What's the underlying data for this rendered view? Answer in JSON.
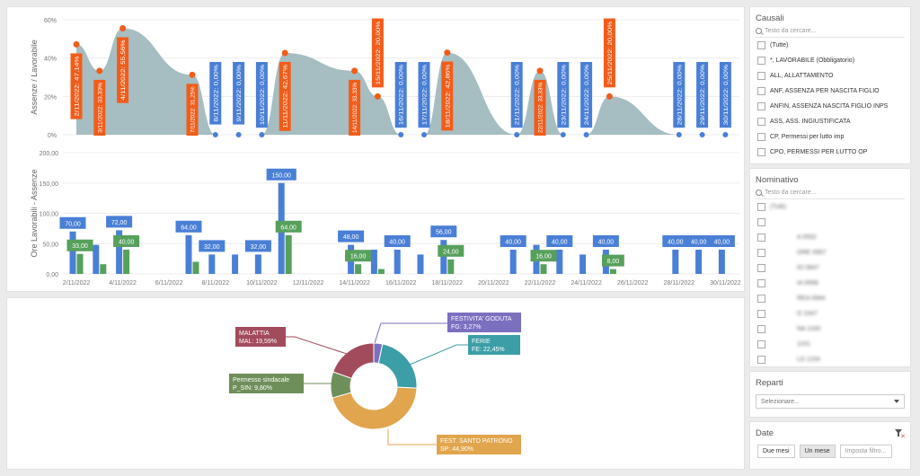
{
  "area_chart": {
    "ylabel": "Assenze / Lavorabile",
    "y_ticks": [
      "60%",
      "40%",
      "20%",
      "0%"
    ],
    "labels": [
      {
        "x": "2/11/2022",
        "text": "2/11/2022: 47,14%",
        "value": 47.14,
        "type": "orange"
      },
      {
        "x": "3/11/2022",
        "text": "3/11/2022: 33,33%",
        "value": 33.33,
        "type": "orange"
      },
      {
        "x": "4/11/2022",
        "text": "4/11/2022: 55,56%",
        "value": 55.56,
        "type": "orange"
      },
      {
        "x": "7/11/2022",
        "text": "7/11/2022: 31,25%",
        "value": 31.25,
        "type": "orange"
      },
      {
        "x": "8/11/2022",
        "text": "8/11/2022: 0,00%",
        "value": 0,
        "type": "blue"
      },
      {
        "x": "9/11/2022",
        "text": "9/11/2022: 0,00%",
        "value": 0,
        "type": "blue"
      },
      {
        "x": "10/11/2022",
        "text": "10/11/2022: 0,00%",
        "value": 0,
        "type": "blue"
      },
      {
        "x": "11/11/2022",
        "text": "11/11/2022: 42,67%",
        "value": 42.67,
        "type": "orange"
      },
      {
        "x": "14/11/2022",
        "text": "14/11/2022: 33,33%",
        "value": 33.33,
        "type": "orange"
      },
      {
        "x": "15/11/2022",
        "text": "15/11/2022: 20,00%",
        "value": 20.0,
        "type": "orange"
      },
      {
        "x": "16/11/2022",
        "text": "16/11/2022: 0,00%",
        "value": 0,
        "type": "blue"
      },
      {
        "x": "17/11/2022",
        "text": "17/11/2022: 0,00%",
        "value": 0,
        "type": "blue"
      },
      {
        "x": "18/11/2022",
        "text": "18/11/2022: 42,86%",
        "value": 42.86,
        "type": "orange"
      },
      {
        "x": "21/11/2022",
        "text": "21/11/2022: 0,00%",
        "value": 0,
        "type": "blue"
      },
      {
        "x": "22/11/2022",
        "text": "22/11/2022: 33,33%",
        "value": 33.33,
        "type": "orange"
      },
      {
        "x": "23/11/2022",
        "text": "23/11/2022: 0,00%",
        "value": 0,
        "type": "blue"
      },
      {
        "x": "24/11/2022",
        "text": "24/11/2022: 0,00%",
        "value": 0,
        "type": "blue"
      },
      {
        "x": "25/11/2022",
        "text": "25/11/2022: 20,00%",
        "value": 20.0,
        "type": "orange"
      },
      {
        "x": "28/11/2022",
        "text": "28/11/2022: 0,00%",
        "value": 0,
        "type": "blue"
      },
      {
        "x": "29/11/2022",
        "text": "29/11/2022: 0,00%",
        "value": 0,
        "type": "blue"
      },
      {
        "x": "30/11/2022",
        "text": "30/11/2022: 0,00%",
        "value": 0,
        "type": "blue"
      }
    ],
    "colors": {
      "area": "#a6bec2",
      "orange": "#f25c19",
      "blue": "#4a7fd6"
    }
  },
  "chart_data": {
    "type": "bar",
    "title": "",
    "ylabel": "Ore Lavorabili - Assenze",
    "ylim": [
      0,
      200
    ],
    "y_ticks": [
      "200,00",
      "150,00",
      "100,00",
      "50,00",
      "0,00"
    ],
    "x_ticks": [
      "2/11/2022",
      "4/11/2022",
      "6/11/2022",
      "8/11/2022",
      "10/11/2022",
      "12/11/2022",
      "14/11/2022",
      "16/11/2022",
      "18/11/2022",
      "20/11/2022",
      "22/11/2022",
      "24/11/2022",
      "26/11/2022",
      "28/11/2022",
      "30/11/2022"
    ],
    "categories": [
      "2/11/2022",
      "3/11/2022",
      "4/11/2022",
      "7/11/2022",
      "8/11/2022",
      "9/11/2022",
      "10/11/2022",
      "11/11/2022",
      "14/11/2022",
      "15/11/2022",
      "16/11/2022",
      "17/11/2022",
      "18/11/2022",
      "21/11/2022",
      "22/11/2022",
      "23/11/2022",
      "24/11/2022",
      "25/11/2022",
      "28/11/2022",
      "29/11/2022",
      "30/11/2022"
    ],
    "series": [
      {
        "values": [
          70,
          48,
          72,
          64,
          32,
          32,
          32,
          150,
          48,
          40,
          40,
          32,
          56,
          40,
          48,
          40,
          32,
          40,
          40,
          40,
          40
        ],
        "color": "#4a7fd6"
      },
      {
        "values": [
          33,
          16,
          40,
          20,
          0,
          0,
          0,
          64,
          16,
          8,
          0,
          0,
          24,
          0,
          16,
          0,
          0,
          8,
          0,
          0,
          0
        ],
        "color": "#56a05c"
      }
    ],
    "data_labels": [
      {
        "category": "2/11/2022",
        "series": 0,
        "text": "70,00"
      },
      {
        "category": "2/11/2022",
        "series": 1,
        "text": "33,00"
      },
      {
        "category": "4/11/2022",
        "series": 0,
        "text": "72,00"
      },
      {
        "category": "4/11/2022",
        "series": 1,
        "text": "40,00"
      },
      {
        "category": "7/11/2022",
        "series": 0,
        "text": "64,00"
      },
      {
        "category": "8/11/2022",
        "series": 0,
        "text": "32,00"
      },
      {
        "category": "10/11/2022",
        "series": 0,
        "text": "32,00"
      },
      {
        "category": "11/11/2022",
        "series": 0,
        "text": "150,00"
      },
      {
        "category": "11/11/2022",
        "series": 1,
        "text": "64,00"
      },
      {
        "category": "14/11/2022",
        "series": 0,
        "text": "48,00"
      },
      {
        "category": "14/11/2022",
        "series": 1,
        "text": "16,00"
      },
      {
        "category": "16/11/2022",
        "series": 0,
        "text": "40,00"
      },
      {
        "category": "18/11/2022",
        "series": 0,
        "text": "56,00"
      },
      {
        "category": "18/11/2022",
        "series": 1,
        "text": "24,00"
      },
      {
        "category": "21/11/2022",
        "series": 0,
        "text": "40,00"
      },
      {
        "category": "22/11/2022",
        "series": 1,
        "text": "16,00"
      },
      {
        "category": "23/11/2022",
        "series": 0,
        "text": "40,00"
      },
      {
        "category": "25/11/2022",
        "series": 0,
        "text": "40,00"
      },
      {
        "category": "25/11/2022",
        "series": 1,
        "text": "8,00"
      },
      {
        "category": "28/11/2022",
        "series": 0,
        "text": "40,00"
      },
      {
        "category": "29/11/2022",
        "series": 0,
        "text": "40,00"
      },
      {
        "category": "30/11/2022",
        "series": 0,
        "text": "40,00"
      }
    ]
  },
  "pie": {
    "slices": [
      {
        "name": "FESTIVITA' GODUTA",
        "label": "FG: 3,27%",
        "value": 3.27,
        "color": "#7b6fbf"
      },
      {
        "name": "FERIE",
        "label": "FE: 22,45%",
        "value": 22.45,
        "color": "#3c9ea6"
      },
      {
        "name": "FEST. SANTO PATRONO",
        "label": "SP: 44,90%",
        "value": 44.9,
        "color": "#e0a54d"
      },
      {
        "name": "Permesso sindacale",
        "label": "P_SIN: 9,80%",
        "value": 9.8,
        "color": "#6e8f5a"
      },
      {
        "name": "MALATTIA",
        "label": "MAL: 19,59%",
        "value": 19.59,
        "color": "#a24b5c"
      }
    ]
  },
  "causali": {
    "title": "Causali",
    "search_placeholder": "Testo da cercare...",
    "items": [
      "(Tutte)",
      "*, LAVORABILE (Obbligatorio)",
      "ALL, ALLATTAMENTO",
      "ANF, ASSENZA PER NASCITA FIGLIO",
      "ANFIN, ASSENZA NASCITA FIGLIO INPS",
      "ASS, ASS. INGIUSTIFICATA",
      "CP, Permessi per lutto imp",
      "CPO, PERMESSI PER LUTTO OP"
    ]
  },
  "nominativo": {
    "title": "Nominativo",
    "search_placeholder": "Testo da cercare...",
    "items": [
      "(Tutti)",
      "",
      "A 0552",
      "ORE 0957",
      "IO 0847",
      "IA 0698",
      "REA 0064",
      "O 1047",
      "NA 1160",
      "1151",
      "LD 1154"
    ]
  },
  "reparti": {
    "title": "Reparti",
    "placeholder": "Selezionare..."
  },
  "date": {
    "title": "Date",
    "buttons": [
      "Due mesi",
      "Un mese",
      "Imposta filtro..."
    ]
  }
}
